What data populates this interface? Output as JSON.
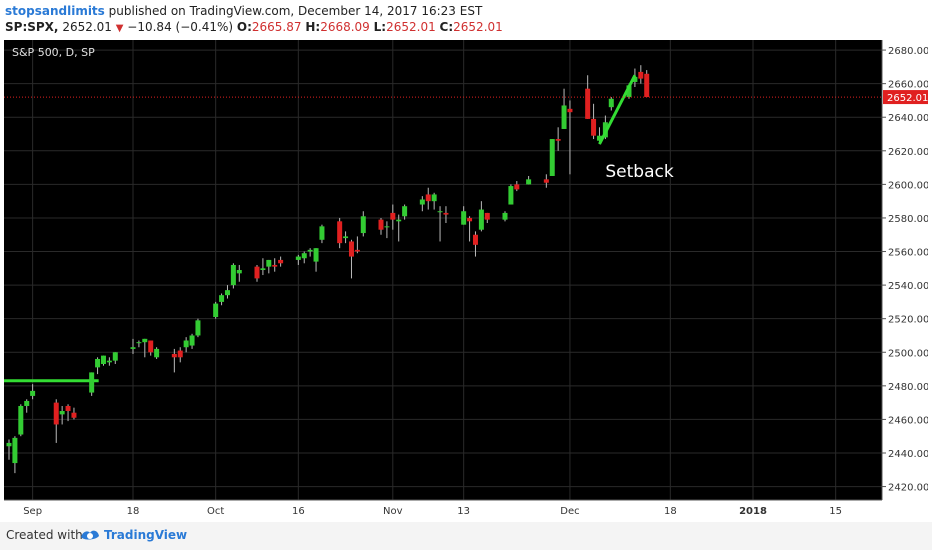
{
  "header": {
    "author": "stopsandlimits",
    "published_text": "published on TradingView.com, December 14, 2017 16:23 EST",
    "symbol": "SP:SPX,",
    "last": "2652.01",
    "change": "−10.84 (−0.41%)",
    "o_label": "O:",
    "o_value": "2665.87",
    "h_label": "H:",
    "h_value": "2668.09",
    "l_label": "L:",
    "l_value": "2652.01",
    "c_label": "C:",
    "c_value": "2652.01"
  },
  "footer": {
    "created_with": "Created with",
    "brand": "TradingView"
  },
  "colors": {
    "background": "#000000",
    "bull": "#33cc33",
    "bear": "#e02020",
    "annotation_line": "#33dd33",
    "price_line": "#e02020"
  },
  "chart_data": {
    "type": "candlestick",
    "title": "S&P 500, D, SP",
    "ylim": [
      2412,
      2686
    ],
    "y_ticks": [
      2420,
      2440,
      2460,
      2480,
      2500,
      2520,
      2540,
      2560,
      2580,
      2600,
      2620,
      2640,
      2660,
      2680
    ],
    "y_tick_labels": [
      "2420.00",
      "2440.00",
      "2460.00",
      "2480.00",
      "2500.00",
      "2520.00",
      "2540.00",
      "2560.00",
      "2580.00",
      "2600.00",
      "2620.00",
      "2640.00",
      "2660.00",
      "2680.00"
    ],
    "x_ticks": [
      {
        "label": "Sep",
        "date": "2017-09-01"
      },
      {
        "label": "18",
        "date": "2017-09-18"
      },
      {
        "label": "Oct",
        "date": "2017-10-02"
      },
      {
        "label": "16",
        "date": "2017-10-16"
      },
      {
        "label": "Nov",
        "date": "2017-11-01"
      },
      {
        "label": "13",
        "date": "2017-11-13"
      },
      {
        "label": "Dec",
        "date": "2017-12-01"
      },
      {
        "label": "18",
        "date": "2017-12-18"
      },
      {
        "label": "2018",
        "date": "2018-01-01"
      },
      {
        "label": "15",
        "date": "2018-01-15"
      }
    ],
    "x_range": [
      "2017-08-28",
      "2018-01-22"
    ],
    "last_price": 2652.01,
    "last_price_label": "2652.01",
    "annotations": [
      {
        "type": "hline",
        "y": 2483,
        "x_from": "2017-08-28",
        "x_to": "2017-09-11"
      },
      {
        "type": "trendline",
        "from": {
          "date": "2017-12-06",
          "y": 2624
        },
        "to": {
          "date": "2017-12-12",
          "y": 2665
        }
      },
      {
        "type": "text",
        "text": "Setback",
        "date": "2017-12-07",
        "y": 2608
      }
    ],
    "candles": [
      {
        "d": "2017-08-28",
        "o": 2444,
        "h": 2448,
        "l": 2436,
        "c": 2446
      },
      {
        "d": "2017-08-29",
        "o": 2434,
        "h": 2450,
        "l": 2428,
        "c": 2449
      },
      {
        "d": "2017-08-30",
        "o": 2451,
        "h": 2469,
        "l": 2450,
        "c": 2468
      },
      {
        "d": "2017-08-31",
        "o": 2468,
        "h": 2472,
        "l": 2464,
        "c": 2471
      },
      {
        "d": "2017-09-01",
        "o": 2474,
        "h": 2481,
        "l": 2472,
        "c": 2477
      },
      {
        "d": "2017-09-05",
        "o": 2470,
        "h": 2472,
        "l": 2446,
        "c": 2457
      },
      {
        "d": "2017-09-06",
        "o": 2463,
        "h": 2468,
        "l": 2457,
        "c": 2465
      },
      {
        "d": "2017-09-07",
        "o": 2468,
        "h": 2469,
        "l": 2459,
        "c": 2465
      },
      {
        "d": "2017-09-08",
        "o": 2464,
        "h": 2467,
        "l": 2460,
        "c": 2461
      },
      {
        "d": "2017-09-11",
        "o": 2476,
        "h": 2488,
        "l": 2474,
        "c": 2488
      },
      {
        "d": "2017-09-12",
        "o": 2491,
        "h": 2497,
        "l": 2487,
        "c": 2496
      },
      {
        "d": "2017-09-13",
        "o": 2493,
        "h": 2498,
        "l": 2492,
        "c": 2498
      },
      {
        "d": "2017-09-14",
        "o": 2494,
        "h": 2497,
        "l": 2492,
        "c": 2495
      },
      {
        "d": "2017-09-15",
        "o": 2495,
        "h": 2500,
        "l": 2493,
        "c": 2500
      },
      {
        "d": "2017-09-18",
        "o": 2502,
        "h": 2508,
        "l": 2499,
        "c": 2503
      },
      {
        "d": "2017-09-19",
        "o": 2506,
        "h": 2507,
        "l": 2503,
        "c": 2506
      },
      {
        "d": "2017-09-20",
        "o": 2506,
        "h": 2508,
        "l": 2497,
        "c": 2508
      },
      {
        "d": "2017-09-21",
        "o": 2507,
        "h": 2507,
        "l": 2498,
        "c": 2500
      },
      {
        "d": "2017-09-22",
        "o": 2497,
        "h": 2503,
        "l": 2496,
        "c": 2502
      },
      {
        "d": "2017-09-25",
        "o": 2499,
        "h": 2502,
        "l": 2488,
        "c": 2497
      },
      {
        "d": "2017-09-26",
        "o": 2501,
        "h": 2503,
        "l": 2494,
        "c": 2497
      },
      {
        "d": "2017-09-27",
        "o": 2503,
        "h": 2509,
        "l": 2500,
        "c": 2507
      },
      {
        "d": "2017-09-28",
        "o": 2504,
        "h": 2511,
        "l": 2502,
        "c": 2510
      },
      {
        "d": "2017-09-29",
        "o": 2510,
        "h": 2520,
        "l": 2509,
        "c": 2519
      },
      {
        "d": "2017-10-02",
        "o": 2521,
        "h": 2530,
        "l": 2520,
        "c": 2529
      },
      {
        "d": "2017-10-03",
        "o": 2530,
        "h": 2535,
        "l": 2528,
        "c": 2534
      },
      {
        "d": "2017-10-04",
        "o": 2534,
        "h": 2540,
        "l": 2532,
        "c": 2537
      },
      {
        "d": "2017-10-05",
        "o": 2540,
        "h": 2553,
        "l": 2538,
        "c": 2552
      },
      {
        "d": "2017-10-06",
        "o": 2547,
        "h": 2552,
        "l": 2542,
        "c": 2549
      },
      {
        "d": "2017-10-09",
        "o": 2551,
        "h": 2552,
        "l": 2542,
        "c": 2544
      },
      {
        "d": "2017-10-10",
        "o": 2549,
        "h": 2556,
        "l": 2546,
        "c": 2550
      },
      {
        "d": "2017-10-11",
        "o": 2551,
        "h": 2555,
        "l": 2547,
        "c": 2555
      },
      {
        "d": "2017-10-12",
        "o": 2552,
        "h": 2556,
        "l": 2548,
        "c": 2551
      },
      {
        "d": "2017-10-13",
        "o": 2555,
        "h": 2557,
        "l": 2551,
        "c": 2553
      },
      {
        "d": "2017-10-16",
        "o": 2555,
        "h": 2558,
        "l": 2552,
        "c": 2557
      },
      {
        "d": "2017-10-17",
        "o": 2556,
        "h": 2560,
        "l": 2553,
        "c": 2559
      },
      {
        "d": "2017-10-18",
        "o": 2560,
        "h": 2562,
        "l": 2557,
        "c": 2561
      },
      {
        "d": "2017-10-19",
        "o": 2554,
        "h": 2562,
        "l": 2548,
        "c": 2562
      },
      {
        "d": "2017-10-20",
        "o": 2567,
        "h": 2576,
        "l": 2565,
        "c": 2575
      },
      {
        "d": "2017-10-23",
        "o": 2578,
        "h": 2580,
        "l": 2562,
        "c": 2565
      },
      {
        "d": "2017-10-24",
        "o": 2568,
        "h": 2572,
        "l": 2565,
        "c": 2569
      },
      {
        "d": "2017-10-25",
        "o": 2566,
        "h": 2567,
        "l": 2544,
        "c": 2557
      },
      {
        "d": "2017-10-26",
        "o": 2561,
        "h": 2569,
        "l": 2559,
        "c": 2560
      },
      {
        "d": "2017-10-27",
        "o": 2571,
        "h": 2584,
        "l": 2569,
        "c": 2581
      },
      {
        "d": "2017-10-30",
        "o": 2579,
        "h": 2580,
        "l": 2570,
        "c": 2573
      },
      {
        "d": "2017-10-31",
        "o": 2575,
        "h": 2578,
        "l": 2568,
        "c": 2575
      },
      {
        "d": "2017-11-01",
        "o": 2583,
        "h": 2588,
        "l": 2573,
        "c": 2579
      },
      {
        "d": "2017-11-02",
        "o": 2578,
        "h": 2582,
        "l": 2566,
        "c": 2579
      },
      {
        "d": "2017-11-03",
        "o": 2581,
        "h": 2588,
        "l": 2579,
        "c": 2587
      },
      {
        "d": "2017-11-06",
        "o": 2588,
        "h": 2593,
        "l": 2584,
        "c": 2591
      },
      {
        "d": "2017-11-07",
        "o": 2594,
        "h": 2598,
        "l": 2585,
        "c": 2590
      },
      {
        "d": "2017-11-08",
        "o": 2590,
        "h": 2595,
        "l": 2585,
        "c": 2594
      },
      {
        "d": "2017-11-09",
        "o": 2584,
        "h": 2587,
        "l": 2566,
        "c": 2584
      },
      {
        "d": "2017-11-10",
        "o": 2583,
        "h": 2587,
        "l": 2577,
        "c": 2582
      },
      {
        "d": "2017-11-13",
        "o": 2576,
        "h": 2587,
        "l": 2576,
        "c": 2584
      },
      {
        "d": "2017-11-14",
        "o": 2580,
        "h": 2581,
        "l": 2566,
        "c": 2578
      },
      {
        "d": "2017-11-15",
        "o": 2570,
        "h": 2572,
        "l": 2557,
        "c": 2564
      },
      {
        "d": "2017-11-16",
        "o": 2573,
        "h": 2590,
        "l": 2572,
        "c": 2585
      },
      {
        "d": "2017-11-17",
        "o": 2583,
        "h": 2583,
        "l": 2577,
        "c": 2579
      },
      {
        "d": "2017-11-20",
        "o": 2579,
        "h": 2584,
        "l": 2578,
        "c": 2583
      },
      {
        "d": "2017-11-21",
        "o": 2588,
        "h": 2600,
        "l": 2588,
        "c": 2599
      },
      {
        "d": "2017-11-22",
        "o": 2600,
        "h": 2602,
        "l": 2596,
        "c": 2597
      },
      {
        "d": "2017-11-24",
        "o": 2600,
        "h": 2605,
        "l": 2600,
        "c": 2603
      },
      {
        "d": "2017-11-27",
        "o": 2603,
        "h": 2606,
        "l": 2598,
        "c": 2601
      },
      {
        "d": "2017-11-28",
        "o": 2605,
        "h": 2627,
        "l": 2605,
        "c": 2627
      },
      {
        "d": "2017-11-29",
        "o": 2627,
        "h": 2634,
        "l": 2620,
        "c": 2626
      },
      {
        "d": "2017-11-30",
        "o": 2633,
        "h": 2657,
        "l": 2633,
        "c": 2647
      },
      {
        "d": "2017-12-01",
        "o": 2645,
        "h": 2650,
        "l": 2606,
        "c": 2643
      },
      {
        "d": "2017-12-04",
        "o": 2657,
        "h": 2665,
        "l": 2639,
        "c": 2639
      },
      {
        "d": "2017-12-05",
        "o": 2639,
        "h": 2648,
        "l": 2627,
        "c": 2629
      },
      {
        "d": "2017-12-06",
        "o": 2626,
        "h": 2634,
        "l": 2624,
        "c": 2629
      },
      {
        "d": "2017-12-07",
        "o": 2628,
        "h": 2641,
        "l": 2627,
        "c": 2637
      },
      {
        "d": "2017-12-08",
        "o": 2646,
        "h": 2652,
        "l": 2644,
        "c": 2651
      },
      {
        "d": "2017-12-11",
        "o": 2652,
        "h": 2660,
        "l": 2651,
        "c": 2659
      },
      {
        "d": "2017-12-12",
        "o": 2661,
        "h": 2669,
        "l": 2658,
        "c": 2664
      },
      {
        "d": "2017-12-13",
        "o": 2667,
        "h": 2671,
        "l": 2660,
        "c": 2663
      },
      {
        "d": "2017-12-14",
        "o": 2665.87,
        "h": 2668.09,
        "l": 2652.01,
        "c": 2652.01
      }
    ]
  }
}
